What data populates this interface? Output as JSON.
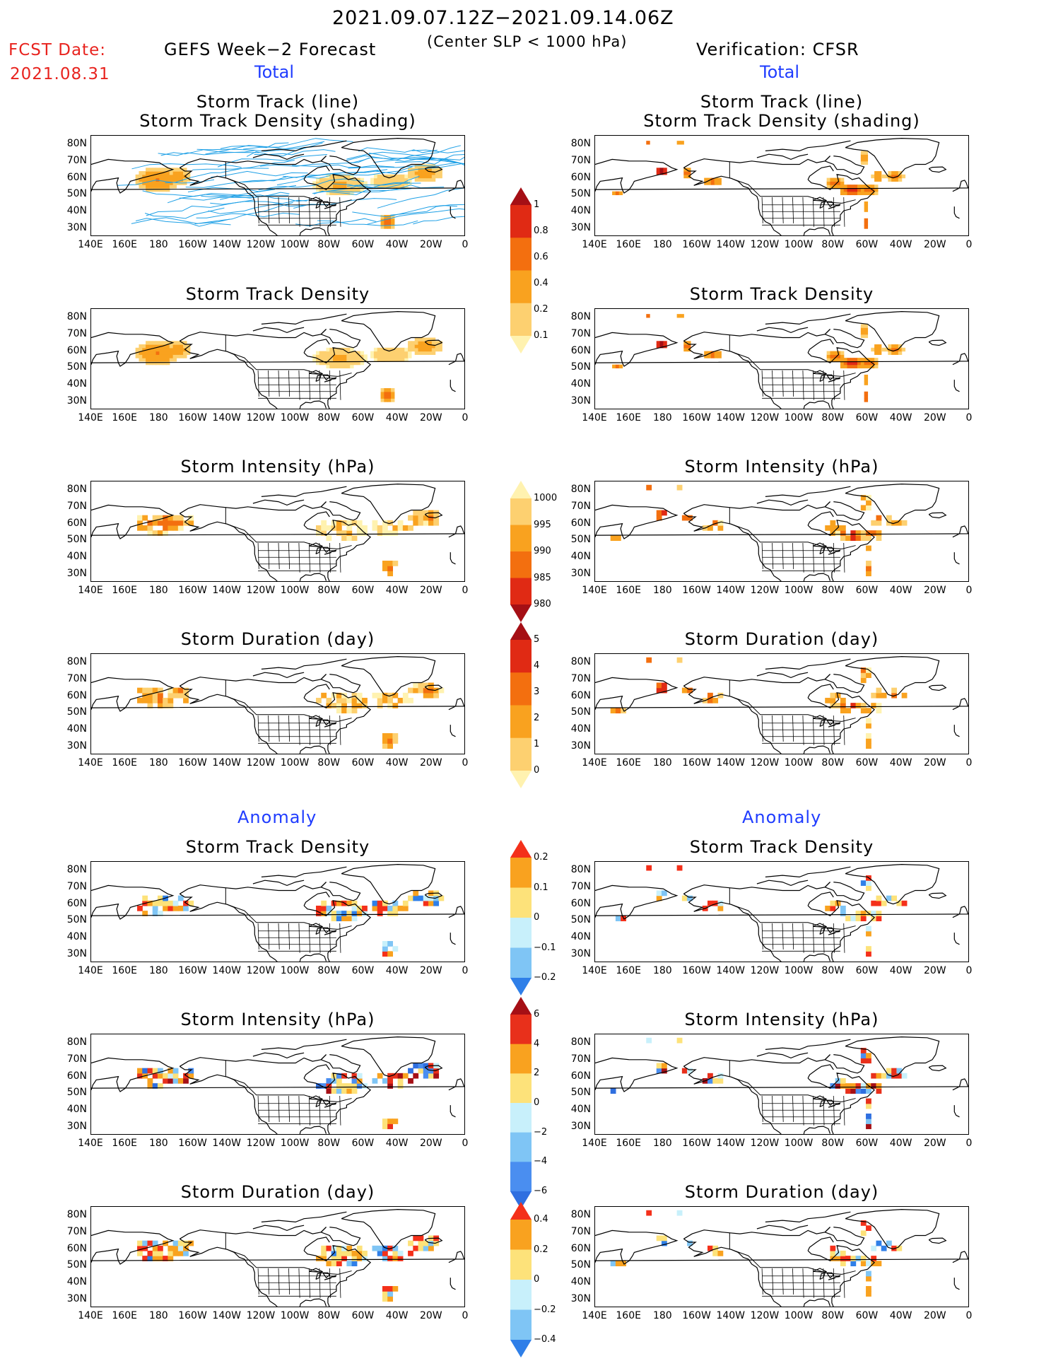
{
  "header": {
    "period": "2021.09.07.12Z−2021.09.14.06Z",
    "criterion": "(Center SLP < 1000 hPa)",
    "fcst_label": "FCST Date:",
    "fcst_date": "2021.08.31",
    "left_title": "GEFS Week−2 Forecast",
    "right_title": "Verification: CFSR",
    "total_label": "Total",
    "anomaly_label": "Anomaly"
  },
  "panel_titles": {
    "track_line": "Storm Track (line)",
    "track_shading": "Storm Track Density (shading)",
    "density": "Storm Track Density",
    "intensity": "Storm Intensity (hPa)",
    "duration": "Storm Duration (day)"
  },
  "axes": {
    "lat_labels": [
      "80N",
      "70N",
      "60N",
      "50N",
      "40N",
      "30N"
    ],
    "lon_labels": [
      "140E",
      "160E",
      "180",
      "160W",
      "140W",
      "120W",
      "100W",
      "80W",
      "60W",
      "40W",
      "20W",
      "0"
    ]
  },
  "colorbars": {
    "density_total": {
      "labels": [
        "1",
        "0.8",
        "0.6",
        "0.4",
        "0.2",
        "0.1"
      ],
      "colors": [
        "#a50f15",
        "#e02a14",
        "#f36f0f",
        "#f9a21f",
        "#fdd070",
        "#fff2b0"
      ]
    },
    "intensity_total": {
      "labels": [
        "1000",
        "995",
        "990",
        "985",
        "980"
      ],
      "colors": [
        "#fff2b0",
        "#fdd070",
        "#f9a21f",
        "#f36f0f",
        "#e02a14",
        "#a50f15"
      ]
    },
    "duration_total": {
      "labels": [
        "5",
        "4",
        "3",
        "2",
        "1",
        "0"
      ],
      "colors": [
        "#a50f15",
        "#e02a14",
        "#f36f0f",
        "#f9a21f",
        "#fdd070",
        "#fff2b0"
      ]
    },
    "density_anom": {
      "labels": [
        "0.2",
        "0.1",
        "0",
        "−0.1",
        "−0.2"
      ],
      "colors": [
        "#f4301a",
        "#f9a21f",
        "#fde27a",
        "#c8f0fb",
        "#7fc5f5",
        "#2f7fe8"
      ]
    },
    "intensity_anom": {
      "labels": [
        "6",
        "4",
        "2",
        "0",
        "−2",
        "−4",
        "−6"
      ],
      "colors": [
        "#a50f15",
        "#e8301b",
        "#f9a21f",
        "#fde27a",
        "#c8f0fb",
        "#7fc5f5",
        "#4a8ef0",
        "#2f6fe0"
      ]
    },
    "duration_anom": {
      "labels": [
        "0.4",
        "0.2",
        "0",
        "−0.2",
        "−0.4"
      ],
      "colors": [
        "#f4301a",
        "#f9a21f",
        "#fde27a",
        "#c8f0fb",
        "#7fc5f5",
        "#2f7fe8"
      ]
    }
  },
  "palette": {
    "track_line": "#1ea0e6",
    "coast": "#000000"
  }
}
